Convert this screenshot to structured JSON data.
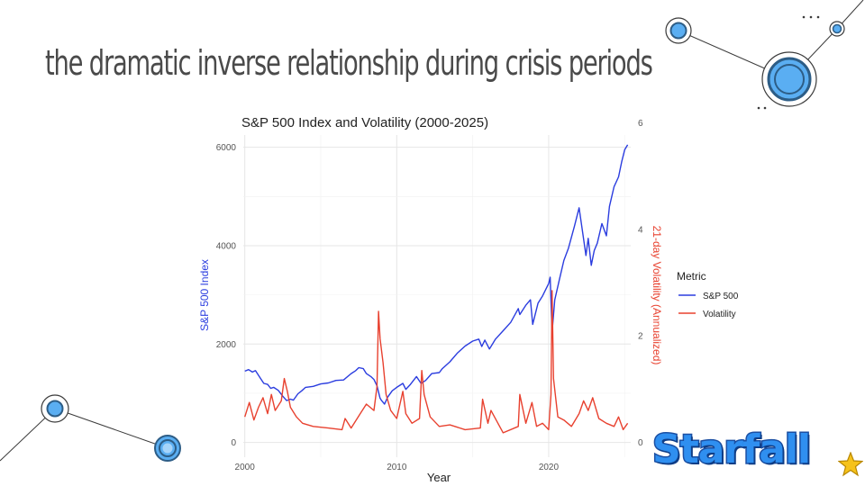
{
  "slide": {
    "title": "the dramatic inverse relationship during crisis periods",
    "logo_text": "Starfall"
  },
  "colors": {
    "sp500": "#2b3ddf",
    "volatility": "#e8412f",
    "title_text": "#4a4a4a",
    "deco_stroke": "#3a3a3a",
    "deco_fill": "#5aaef2",
    "logo_blue": "#2f8ff0",
    "logo_star": "#f6c21a"
  },
  "chart_data": {
    "type": "line",
    "title": "S&P 500 Index and Volatility (2000-2025)",
    "xlabel": "Year",
    "ylabel": "S&P 500 Index",
    "y2label": "21-day Volatility (Annualized)",
    "xlim": [
      1999.9,
      2025.4
    ],
    "ylim": [
      -300,
      6250
    ],
    "y2lim": [
      -0.0923,
      1.9231
    ],
    "x_ticks": [
      2000,
      2010,
      2020
    ],
    "y_ticks": [
      0,
      2000,
      4000,
      6000
    ],
    "y2_ticks": [
      0,
      2,
      4,
      6
    ],
    "y2_tick_scale": 0.3333,
    "grid": true,
    "legend": {
      "title": "Metric",
      "position": "right",
      "entries": [
        "S&P 500",
        "Volatility"
      ]
    },
    "series": [
      {
        "name": "S&P 500",
        "axis": "left",
        "x": [
          2000.0,
          2000.25,
          2000.5,
          2000.7,
          2001.0,
          2001.25,
          2001.5,
          2001.7,
          2001.9,
          2002.2,
          2002.5,
          2002.75,
          2003.0,
          2003.2,
          2003.5,
          2003.75,
          2004.0,
          2004.5,
          2005.0,
          2005.5,
          2006.0,
          2006.5,
          2007.0,
          2007.3,
          2007.5,
          2007.8,
          2008.0,
          2008.3,
          2008.5,
          2008.7,
          2008.9,
          2009.0,
          2009.2,
          2009.4,
          2009.7,
          2010.0,
          2010.4,
          2010.6,
          2010.9,
          2011.3,
          2011.6,
          2011.9,
          2012.3,
          2012.8,
          2013.0,
          2013.5,
          2014.0,
          2014.5,
          2015.0,
          2015.4,
          2015.6,
          2015.8,
          2016.1,
          2016.5,
          2017.0,
          2017.5,
          2018.0,
          2018.1,
          2018.5,
          2018.8,
          2018.95,
          2019.3,
          2019.6,
          2020.0,
          2020.1,
          2020.22,
          2020.4,
          2020.7,
          2021.0,
          2021.3,
          2021.7,
          2022.0,
          2022.2,
          2022.45,
          2022.6,
          2022.8,
          2023.0,
          2023.2,
          2023.5,
          2023.8,
          2024.0,
          2024.3,
          2024.6,
          2024.8,
          2025.0,
          2025.2
        ],
        "y": [
          1450,
          1480,
          1430,
          1460,
          1320,
          1200,
          1180,
          1100,
          1120,
          1060,
          940,
          850,
          880,
          860,
          990,
          1050,
          1120,
          1140,
          1190,
          1210,
          1260,
          1270,
          1400,
          1460,
          1520,
          1500,
          1400,
          1340,
          1280,
          1150,
          900,
          850,
          780,
          920,
          1050,
          1120,
          1200,
          1080,
          1180,
          1340,
          1200,
          1260,
          1400,
          1420,
          1500,
          1640,
          1820,
          1960,
          2060,
          2100,
          1950,
          2080,
          1900,
          2100,
          2270,
          2440,
          2720,
          2600,
          2790,
          2900,
          2400,
          2830,
          2980,
          3230,
          3360,
          2240,
          2900,
          3300,
          3700,
          3950,
          4400,
          4770,
          4350,
          3800,
          4150,
          3600,
          3900,
          4050,
          4450,
          4200,
          4800,
          5200,
          5400,
          5700,
          5950,
          6050
        ]
      },
      {
        "name": "Volatility",
        "axis": "right",
        "x": [
          2000.0,
          2000.3,
          2000.6,
          2000.9,
          2001.2,
          2001.5,
          2001.75,
          2002.0,
          2002.4,
          2002.6,
          2002.8,
          2003.0,
          2003.4,
          2003.8,
          2004.5,
          2005.5,
          2006.4,
          2006.6,
          2007.0,
          2007.6,
          2008.0,
          2008.5,
          2008.7,
          2008.8,
          2008.9,
          2009.1,
          2009.3,
          2009.6,
          2010.0,
          2010.4,
          2010.6,
          2011.0,
          2011.5,
          2011.65,
          2011.8,
          2012.2,
          2012.8,
          2013.5,
          2014.5,
          2015.5,
          2015.65,
          2016.0,
          2016.2,
          2017.0,
          2018.0,
          2018.1,
          2018.5,
          2018.9,
          2019.2,
          2019.6,
          2020.0,
          2020.15,
          2020.22,
          2020.32,
          2020.6,
          2021.0,
          2021.5,
          2022.0,
          2022.3,
          2022.6,
          2022.9,
          2023.3,
          2023.8,
          2024.3,
          2024.6,
          2024.9,
          2025.2
        ],
        "y": [
          0.16,
          0.25,
          0.14,
          0.22,
          0.28,
          0.18,
          0.3,
          0.2,
          0.26,
          0.4,
          0.32,
          0.22,
          0.16,
          0.12,
          0.1,
          0.09,
          0.08,
          0.15,
          0.09,
          0.18,
          0.24,
          0.2,
          0.35,
          0.82,
          0.65,
          0.5,
          0.3,
          0.2,
          0.15,
          0.32,
          0.18,
          0.12,
          0.15,
          0.45,
          0.3,
          0.16,
          0.1,
          0.11,
          0.08,
          0.09,
          0.27,
          0.12,
          0.2,
          0.06,
          0.1,
          0.3,
          0.12,
          0.25,
          0.1,
          0.12,
          0.08,
          0.3,
          0.95,
          0.4,
          0.16,
          0.14,
          0.1,
          0.18,
          0.26,
          0.2,
          0.28,
          0.15,
          0.12,
          0.1,
          0.16,
          0.08,
          0.12
        ]
      }
    ]
  }
}
